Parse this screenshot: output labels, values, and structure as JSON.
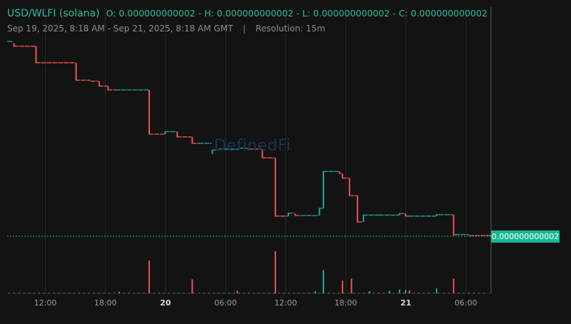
{
  "header": {
    "pair": "USD/WLFI (solana)",
    "ohlc": "O: 0.000000000002 - H: 0.000000000002 - L: 0.000000000002 - C: 0.000000000002",
    "range": "Sep 19, 2025, 8:18 AM - Sep 21, 2025, 8:18 AM GMT",
    "separator": "|",
    "resolution": "Resolution: 15m"
  },
  "watermark": "DefinedFi",
  "price_label": "0.000000000002",
  "colors": {
    "up": "#26a69a",
    "down": "#ef5350",
    "background": "#131313",
    "price_tag": "#17b893"
  },
  "chart_data": {
    "type": "candlestick",
    "resolution": "15m",
    "x_ticks": [
      {
        "t": 0.7,
        "label": "12:00",
        "bold": false
      },
      {
        "t": 6.7,
        "label": "18:00",
        "bold": false
      },
      {
        "t": 12.7,
        "label": "20",
        "bold": true
      },
      {
        "t": 18.7,
        "label": "06:00",
        "bold": false
      },
      {
        "t": 24.7,
        "label": "12:00",
        "bold": false
      },
      {
        "t": 30.7,
        "label": "18:00",
        "bold": false
      },
      {
        "t": 36.7,
        "label": "21",
        "bold": true
      },
      {
        "t": 42.7,
        "label": "06:00",
        "bold": false
      }
    ],
    "x_range_hours": [
      -4.3,
      48
    ],
    "y_range_relative": [
      0.0,
      1.0
    ],
    "last_price_relative": 0.0,
    "steps": [
      {
        "t0": -4.3,
        "t1": -2.5,
        "o": 1.0,
        "c": 1.0
      },
      {
        "t0": -2.5,
        "t1": -0.3,
        "o": 0.99,
        "c": 0.975
      },
      {
        "t0": -0.3,
        "t1": 3.7,
        "o": 0.975,
        "c": 0.89
      },
      {
        "t0": 3.7,
        "t1": 5.2,
        "o": 0.89,
        "c": 0.8
      },
      {
        "t0": 5.2,
        "t1": 6.0,
        "o": 0.8,
        "c": 0.795
      },
      {
        "t0": 6.0,
        "t1": 6.9,
        "o": 0.795,
        "c": 0.77
      },
      {
        "t0": 6.9,
        "t1": 7.7,
        "o": 0.77,
        "c": 0.75
      },
      {
        "t0": 7.7,
        "t1": 11.0,
        "o": 0.75,
        "c": 0.75
      },
      {
        "t0": 11.0,
        "t1": 12.6,
        "o": 0.75,
        "c": 0.522
      },
      {
        "t0": 12.6,
        "t1": 13.8,
        "o": 0.522,
        "c": 0.535
      },
      {
        "t0": 13.8,
        "t1": 15.3,
        "o": 0.535,
        "c": 0.508
      },
      {
        "t0": 15.3,
        "t1": 16.0,
        "o": 0.508,
        "c": 0.475
      },
      {
        "t0": 16.0,
        "t1": 17.3,
        "o": 0.475,
        "c": 0.475
      },
      {
        "t0": 17.3,
        "t1": 18.0,
        "o": 0.42,
        "c": 0.44
      },
      {
        "t0": 18.0,
        "t1": 20.0,
        "o": 0.44,
        "c": 0.445
      },
      {
        "t0": 20.0,
        "t1": 20.9,
        "o": 0.445,
        "c": 0.45
      },
      {
        "t0": 20.9,
        "t1": 22.3,
        "o": 0.45,
        "c": 0.445
      },
      {
        "t0": 22.3,
        "t1": 23.6,
        "o": 0.445,
        "c": 0.4
      },
      {
        "t0": 23.6,
        "t1": 24.9,
        "o": 0.4,
        "c": 0.1
      },
      {
        "t0": 24.9,
        "t1": 25.6,
        "o": 0.1,
        "c": 0.115
      },
      {
        "t0": 25.6,
        "t1": 26.2,
        "o": 0.112,
        "c": 0.103
      },
      {
        "t0": 26.2,
        "t1": 28.0,
        "o": 0.103,
        "c": 0.103
      },
      {
        "t0": 28.0,
        "t1": 28.4,
        "o": 0.103,
        "c": 0.14
      },
      {
        "t0": 28.4,
        "t1": 30.0,
        "o": 0.14,
        "c": 0.33
      },
      {
        "t0": 30.0,
        "t1": 30.3,
        "o": 0.33,
        "c": 0.32
      },
      {
        "t0": 30.3,
        "t1": 31.0,
        "o": 0.318,
        "c": 0.296
      },
      {
        "t0": 31.0,
        "t1": 31.8,
        "o": 0.296,
        "c": 0.205
      },
      {
        "t0": 31.8,
        "t1": 32.4,
        "o": 0.205,
        "c": 0.07
      },
      {
        "t0": 32.4,
        "t1": 34.0,
        "o": 0.07,
        "c": 0.105
      },
      {
        "t0": 34.0,
        "t1": 36.0,
        "o": 0.105,
        "c": 0.105
      },
      {
        "t0": 36.0,
        "t1": 36.6,
        "o": 0.105,
        "c": 0.113
      },
      {
        "t0": 36.6,
        "t1": 37.0,
        "o": 0.113,
        "c": 0.1
      },
      {
        "t0": 37.0,
        "t1": 39.7,
        "o": 0.1,
        "c": 0.1
      },
      {
        "t0": 39.7,
        "t1": 40.0,
        "o": 0.1,
        "c": 0.107
      },
      {
        "t0": 40.0,
        "t1": 41.4,
        "o": 0.107,
        "c": 0.107
      },
      {
        "t0": 41.4,
        "t1": 41.6,
        "o": 0.107,
        "c": 0.002
      },
      {
        "t0": 41.6,
        "t1": 43.0,
        "o": 0.002,
        "c": 0.005
      },
      {
        "t0": 43.0,
        "t1": 48.0,
        "o": 0.005,
        "c": 0.0
      }
    ],
    "volume_spikes": [
      {
        "t": 11.0,
        "v": 0.78,
        "dir": "down"
      },
      {
        "t": 15.3,
        "v": 0.33,
        "dir": "down"
      },
      {
        "t": 23.6,
        "v": 1.0,
        "dir": "down"
      },
      {
        "t": 28.4,
        "v": 0.55,
        "dir": "up"
      },
      {
        "t": 30.3,
        "v": 0.3,
        "dir": "down"
      },
      {
        "t": 31.2,
        "v": 0.35,
        "dir": "down"
      },
      {
        "t": 19.8,
        "v": 0.06,
        "dir": "down"
      },
      {
        "t": 27.6,
        "v": 0.05,
        "dir": "up"
      },
      {
        "t": 36.0,
        "v": 0.09,
        "dir": "up"
      },
      {
        "t": 36.6,
        "v": 0.08,
        "dir": "up"
      },
      {
        "t": 37.0,
        "v": 0.07,
        "dir": "down"
      },
      {
        "t": 39.7,
        "v": 0.12,
        "dir": "up"
      },
      {
        "t": 41.4,
        "v": 0.35,
        "dir": "down"
      },
      {
        "t": 8.0,
        "v": 0.04,
        "dir": "up"
      },
      {
        "t": 33.0,
        "v": 0.05,
        "dir": "up"
      },
      {
        "t": 35.0,
        "v": 0.06,
        "dir": "up"
      }
    ]
  }
}
